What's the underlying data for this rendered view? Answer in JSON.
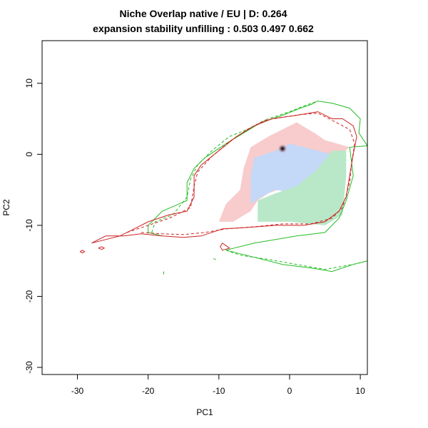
{
  "chart_data": {
    "type": "heatmap",
    "title_line1": "Niche Overlap native / EU | D: 0.264",
    "title_line2": "expansion stability unfilling : 0.503 0.497 0.662",
    "xlabel": "PC1",
    "ylabel": "PC2",
    "xlim": [
      -35,
      11
    ],
    "ylim": [
      -31,
      16
    ],
    "xticks": [
      -30,
      -20,
      -10,
      0,
      10
    ],
    "yticks": [
      -30,
      -20,
      -10,
      0,
      10
    ],
    "colors": {
      "unfilling": "#b8e8c8",
      "expansion": "#f8cccc",
      "stability": "#c4d8f8",
      "native_contour": "#22bb22",
      "invaded_contour": "#cc2222",
      "density_peak": "#000000"
    },
    "regions": {
      "expansion": [
        [
          -10,
          -9.5
        ],
        [
          -9,
          -7
        ],
        [
          -7,
          -5
        ],
        [
          -6.5,
          -2
        ],
        [
          -5.5,
          1
        ],
        [
          -3,
          2.5
        ],
        [
          1,
          4.5
        ],
        [
          3.5,
          3
        ],
        [
          5,
          2
        ],
        [
          8.5,
          1
        ],
        [
          6,
          -1
        ],
        [
          4,
          -2.5
        ],
        [
          1,
          -4
        ],
        [
          -3,
          -5.5
        ],
        [
          -4.5,
          -6.5
        ],
        [
          -5.5,
          -8
        ],
        [
          -8,
          -9.5
        ]
      ],
      "stability": [
        [
          -5.5,
          -7
        ],
        [
          -5.5,
          -3
        ],
        [
          -5,
          -0.5
        ],
        [
          -2,
          0.5
        ],
        [
          0,
          1.5
        ],
        [
          4,
          0.5
        ],
        [
          6,
          0
        ],
        [
          6.5,
          -1
        ],
        [
          5.5,
          -3
        ],
        [
          3,
          -4.5
        ],
        [
          1,
          -5.5
        ],
        [
          -2,
          -5
        ],
        [
          -4,
          -6
        ]
      ],
      "unfilling": [
        [
          -4.5,
          -9.5
        ],
        [
          -4.5,
          -6.5
        ],
        [
          -2,
          -5.5
        ],
        [
          1,
          -4.5
        ],
        [
          4,
          -2
        ],
        [
          6,
          0.5
        ],
        [
          8,
          0.5
        ],
        [
          8,
          -3
        ],
        [
          7.5,
          -8.5
        ],
        [
          5,
          -10
        ],
        [
          0,
          -9.5
        ],
        [
          -4,
          -9.5
        ]
      ]
    },
    "density_peak": [
      -1,
      0.8
    ],
    "contours": {
      "native_solid": [
        [
          [
            -18,
            -11.5
          ],
          [
            -20,
            -11
          ],
          [
            -20,
            -10
          ],
          [
            -18,
            -8
          ],
          [
            -14.5,
            -6.5
          ],
          [
            -14.5,
            -4
          ],
          [
            -13.5,
            -2
          ],
          [
            -12,
            -0.5
          ],
          [
            -9,
            1.5
          ],
          [
            -6.5,
            3
          ],
          [
            -4,
            4.5
          ],
          [
            -1,
            5.5
          ],
          [
            1.5,
            6.5
          ],
          [
            3,
            7
          ],
          [
            4,
            7.5
          ],
          [
            6,
            7.2
          ],
          [
            8.5,
            6.5
          ],
          [
            10,
            5
          ],
          [
            9.8,
            3
          ],
          [
            11,
            1.2
          ],
          [
            8.5,
            1
          ],
          [
            9,
            -3
          ],
          [
            8,
            -6.5
          ],
          [
            7,
            -9
          ],
          [
            5,
            -11
          ],
          [
            1,
            -11.5
          ],
          [
            -5,
            -12.5
          ],
          [
            -9,
            -13.5
          ],
          [
            -7,
            -14
          ],
          [
            -5,
            -14.5
          ],
          [
            -1,
            -15.5
          ],
          [
            3,
            -16
          ],
          [
            6,
            -16.5
          ],
          [
            9,
            -15.5
          ],
          [
            11,
            -15
          ]
        ],
        [
          [
            -17.8,
            -16.5
          ],
          [
            -17.8,
            -16.9
          ]
        ],
        [
          [
            -10.8,
            -14.7
          ],
          [
            -10.4,
            -14.8
          ]
        ]
      ],
      "native_dashed": [
        [
          [
            -19.5,
            -11
          ],
          [
            -19,
            -9.5
          ],
          [
            -16.5,
            -8.5
          ],
          [
            -14.5,
            -6
          ],
          [
            -14,
            -3.5
          ],
          [
            -13,
            -1.5
          ],
          [
            -11,
            0.5
          ],
          [
            -8.5,
            2.5
          ],
          [
            -6,
            3.5
          ],
          [
            -3,
            5
          ],
          [
            0,
            6
          ],
          [
            2,
            6.8
          ],
          [
            4,
            7.5
          ]
        ],
        [
          [
            -9,
            -13.5
          ],
          [
            -7,
            -14.2
          ],
          [
            -3,
            -14.8
          ],
          [
            1,
            -15.5
          ],
          [
            5,
            -16.2
          ],
          [
            9,
            -15.5
          ],
          [
            11,
            -15
          ]
        ]
      ],
      "invaded_solid": [
        [
          [
            -28,
            -12.5
          ],
          [
            -24,
            -11.5
          ],
          [
            -22,
            -10.5
          ],
          [
            -20,
            -9.5
          ],
          [
            -17,
            -8.5
          ],
          [
            -14.5,
            -8
          ],
          [
            -13.5,
            -6
          ],
          [
            -13.5,
            -3
          ],
          [
            -12.5,
            -1.5
          ],
          [
            -10,
            0.5
          ],
          [
            -7.5,
            2.5
          ],
          [
            -5,
            4
          ],
          [
            -2.5,
            5
          ],
          [
            1,
            5.5
          ],
          [
            4,
            6
          ],
          [
            6,
            5
          ],
          [
            7.5,
            5
          ],
          [
            9,
            4
          ],
          [
            9.5,
            2.5
          ],
          [
            9,
            0
          ],
          [
            8.5,
            -3
          ],
          [
            8,
            -6
          ],
          [
            7,
            -8
          ],
          [
            5,
            -9.5
          ],
          [
            2,
            -10
          ],
          [
            -2,
            -10
          ],
          [
            -6,
            -10.3
          ],
          [
            -9.5,
            -10.5
          ],
          [
            -12.5,
            -11.5
          ],
          [
            -15,
            -11.7
          ],
          [
            -18,
            -11.5
          ],
          [
            -21,
            -11.2
          ],
          [
            -23.5,
            -11.5
          ],
          [
            -26,
            -11.5
          ],
          [
            -28,
            -12.5
          ]
        ],
        [
          [
            -29.3,
            -13.5
          ],
          [
            -29,
            -13.7
          ],
          [
            -29.3,
            -13.9
          ],
          [
            -29.6,
            -13.7
          ],
          [
            -29.3,
            -13.5
          ]
        ],
        [
          [
            -26.6,
            -13
          ],
          [
            -26.2,
            -13.2
          ],
          [
            -26.6,
            -13.4
          ],
          [
            -27,
            -13.2
          ],
          [
            -26.6,
            -13
          ]
        ],
        [
          [
            -9.5,
            -12.5
          ],
          [
            -8.5,
            -13.2
          ],
          [
            -9.5,
            -13.5
          ],
          [
            -9.8,
            -13
          ],
          [
            -9.5,
            -12.5
          ]
        ]
      ],
      "invaded_dashed": [
        [
          [
            -23,
            -11
          ],
          [
            -20,
            -10
          ],
          [
            -17,
            -9
          ],
          [
            -14,
            -7.5
          ],
          [
            -13.5,
            -4.5
          ],
          [
            -13,
            -2.5
          ],
          [
            -11,
            -0.3
          ],
          [
            -8.5,
            1.8
          ],
          [
            -6,
            3.5
          ],
          [
            -3.5,
            4.8
          ],
          [
            -1,
            5.2
          ],
          [
            1.5,
            5.6
          ],
          [
            4,
            5.8
          ],
          [
            6,
            4.8
          ],
          [
            8.5,
            3.5
          ],
          [
            9.2,
            1.5
          ],
          [
            8.8,
            -1
          ],
          [
            8.5,
            -4
          ],
          [
            7.5,
            -7.5
          ],
          [
            6,
            -9
          ],
          [
            3,
            -9.8
          ],
          [
            -1,
            -9.8
          ],
          [
            -5,
            -10.2
          ],
          [
            -9,
            -10.5
          ],
          [
            -12,
            -11
          ],
          [
            -15,
            -11.3
          ],
          [
            -18,
            -11.2
          ],
          [
            -21,
            -11
          ]
        ]
      ]
    }
  }
}
